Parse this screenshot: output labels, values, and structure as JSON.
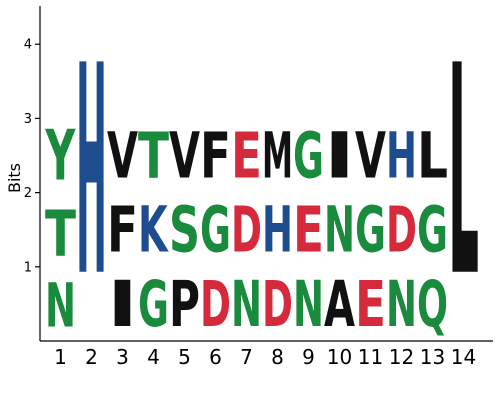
{
  "chart_data": {
    "type": "sequence-logo",
    "ylabel": "Bits",
    "ylim": [
      0,
      4.55
    ],
    "yticks": [
      1,
      2,
      3,
      4
    ],
    "colors": {
      "green": "#1a8a3c",
      "blue": "#1e4d8f",
      "red": "#d42a3c",
      "black": "#111111"
    },
    "positions": [
      {
        "label": "1",
        "letters": [
          {
            "char": "N",
            "bits": 0.95,
            "color": "green"
          },
          {
            "char": "T",
            "bits": 1.0,
            "color": "green"
          },
          {
            "char": "Y",
            "bits": 1.1,
            "color": "green"
          }
        ]
      },
      {
        "label": "2",
        "letters": [
          {
            "char": "H",
            "bits": 4.55,
            "color": "blue"
          }
        ]
      },
      {
        "label": "3",
        "letters": [
          {
            "char": "I",
            "bits": 1.0,
            "color": "black"
          },
          {
            "char": "F",
            "bits": 1.0,
            "color": "black"
          },
          {
            "char": "V",
            "bits": 1.0,
            "color": "black"
          }
        ]
      },
      {
        "label": "4",
        "letters": [
          {
            "char": "G",
            "bits": 1.0,
            "color": "green"
          },
          {
            "char": "K",
            "bits": 1.0,
            "color": "blue"
          },
          {
            "char": "T",
            "bits": 1.0,
            "color": "green"
          }
        ]
      },
      {
        "label": "5",
        "letters": [
          {
            "char": "P",
            "bits": 1.0,
            "color": "black"
          },
          {
            "char": "S",
            "bits": 1.0,
            "color": "green"
          },
          {
            "char": "V",
            "bits": 1.0,
            "color": "black"
          }
        ]
      },
      {
        "label": "6",
        "letters": [
          {
            "char": "D",
            "bits": 1.0,
            "color": "red"
          },
          {
            "char": "G",
            "bits": 1.0,
            "color": "green"
          },
          {
            "char": "F",
            "bits": 1.0,
            "color": "black"
          }
        ]
      },
      {
        "label": "7",
        "letters": [
          {
            "char": "N",
            "bits": 1.0,
            "color": "green"
          },
          {
            "char": "D",
            "bits": 1.0,
            "color": "red"
          },
          {
            "char": "E",
            "bits": 1.0,
            "color": "red"
          }
        ]
      },
      {
        "label": "8",
        "letters": [
          {
            "char": "D",
            "bits": 1.0,
            "color": "red"
          },
          {
            "char": "H",
            "bits": 1.0,
            "color": "blue"
          },
          {
            "char": "M",
            "bits": 1.0,
            "color": "black"
          }
        ]
      },
      {
        "label": "9",
        "letters": [
          {
            "char": "N",
            "bits": 1.0,
            "color": "green"
          },
          {
            "char": "E",
            "bits": 1.0,
            "color": "red"
          },
          {
            "char": "G",
            "bits": 1.0,
            "color": "green"
          }
        ]
      },
      {
        "label": "10",
        "letters": [
          {
            "char": "A",
            "bits": 1.0,
            "color": "black"
          },
          {
            "char": "N",
            "bits": 1.0,
            "color": "green"
          },
          {
            "char": "I",
            "bits": 1.0,
            "color": "black"
          }
        ]
      },
      {
        "label": "11",
        "letters": [
          {
            "char": "E",
            "bits": 1.0,
            "color": "red"
          },
          {
            "char": "G",
            "bits": 1.0,
            "color": "green"
          },
          {
            "char": "V",
            "bits": 1.0,
            "color": "black"
          }
        ]
      },
      {
        "label": "12",
        "letters": [
          {
            "char": "N",
            "bits": 1.0,
            "color": "green"
          },
          {
            "char": "D",
            "bits": 1.0,
            "color": "red"
          },
          {
            "char": "H",
            "bits": 1.0,
            "color": "blue"
          }
        ]
      },
      {
        "label": "13",
        "letters": [
          {
            "char": "Q",
            "bits": 1.0,
            "color": "green"
          },
          {
            "char": "G",
            "bits": 1.0,
            "color": "green"
          },
          {
            "char": "L",
            "bits": 1.0,
            "color": "black"
          }
        ]
      },
      {
        "label": "14",
        "letters": [
          {
            "char": "L",
            "bits": 4.55,
            "color": "black"
          }
        ]
      }
    ]
  }
}
